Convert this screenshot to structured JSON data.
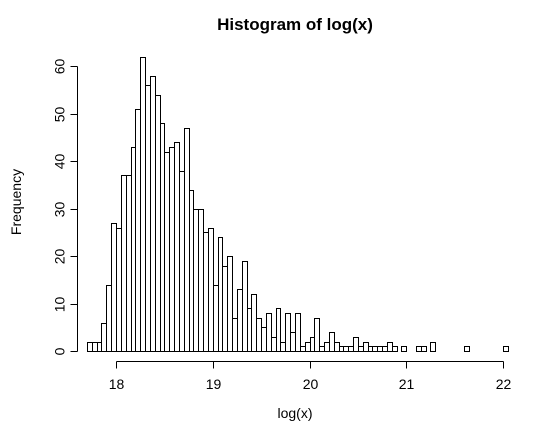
{
  "chart_data": {
    "type": "bar",
    "title": "Histogram of log(x)",
    "xlabel": "log(x)",
    "ylabel": "Frequency",
    "xlim": [
      17.7,
      22.05
    ],
    "ylim": [
      0,
      62
    ],
    "x_ticks": [
      18,
      19,
      20,
      21,
      22
    ],
    "y_ticks": [
      0,
      10,
      20,
      30,
      40,
      50,
      60
    ],
    "bin_start": 17.7,
    "bin_width": 0.05,
    "values": [
      2,
      2,
      2,
      6,
      14,
      27,
      26,
      37,
      37,
      43,
      51,
      62,
      56,
      58,
      54,
      48,
      42,
      43,
      44,
      38,
      47,
      34,
      30,
      30,
      25,
      26,
      14,
      24,
      18,
      20,
      7,
      13,
      19,
      9,
      12,
      7,
      5,
      8,
      3,
      9,
      2,
      8,
      4,
      8,
      1,
      2,
      3,
      7,
      1,
      2,
      4,
      2,
      1,
      1,
      1,
      3,
      1,
      2,
      1,
      1,
      1,
      1,
      2,
      1,
      0,
      1,
      0,
      0,
      1,
      1,
      0,
      2,
      0,
      0,
      0,
      0,
      0,
      0,
      1,
      0,
      0,
      0,
      0,
      0,
      0,
      0,
      1
    ]
  }
}
